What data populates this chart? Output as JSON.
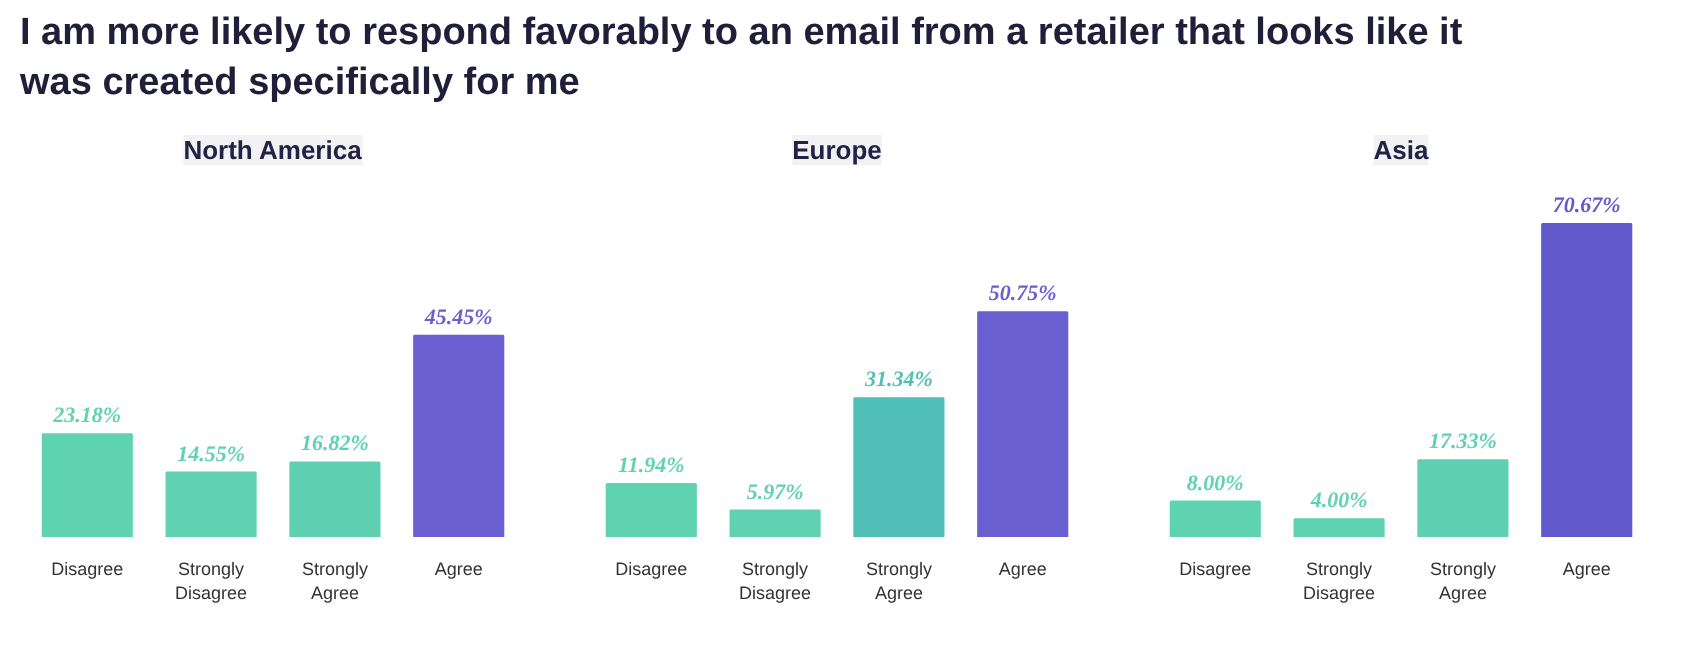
{
  "chart_data": [
    {
      "type": "bar",
      "title": "North America",
      "annotations": [
        "I am more likely to respond favorably to an email from a retailer that looks like it was created specifically for me"
      ],
      "categories": [
        "Disagree",
        "Strongly Disagree",
        "Strongly Agree",
        "Agree"
      ],
      "values": [
        23.18,
        14.55,
        16.82,
        45.45
      ],
      "colors": [
        "#5fd3b0",
        "#60d2b2",
        "#5fd1b2",
        "#6a5fd0"
      ],
      "value_labels": [
        "23.18%",
        "14.55%",
        "16.82%",
        "45.45%"
      ]
    },
    {
      "type": "bar",
      "title": "Europe",
      "categories": [
        "Disagree",
        "Strongly Disagree",
        "Strongly Agree",
        "Agree"
      ],
      "values": [
        11.94,
        5.97,
        31.34,
        50.75
      ],
      "colors": [
        "#5fd3b0",
        "#60d2b2",
        "#4fbfb8",
        "#6a5fd0"
      ],
      "value_labels": [
        "11.94%",
        "5.97%",
        "31.34%",
        "50.75%"
      ]
    },
    {
      "type": "bar",
      "title": "Asia",
      "categories": [
        "Disagree",
        "Strongly Disagree",
        "Strongly Agree",
        "Agree"
      ],
      "values": [
        8.0,
        4.0,
        17.33,
        70.67
      ],
      "colors": [
        "#5fd3b0",
        "#60d2b2",
        "#5fd1b2",
        "#6259cc"
      ],
      "value_labels": [
        "8.00%",
        "4.00%",
        "17.33%",
        "70.67%"
      ]
    }
  ]
}
